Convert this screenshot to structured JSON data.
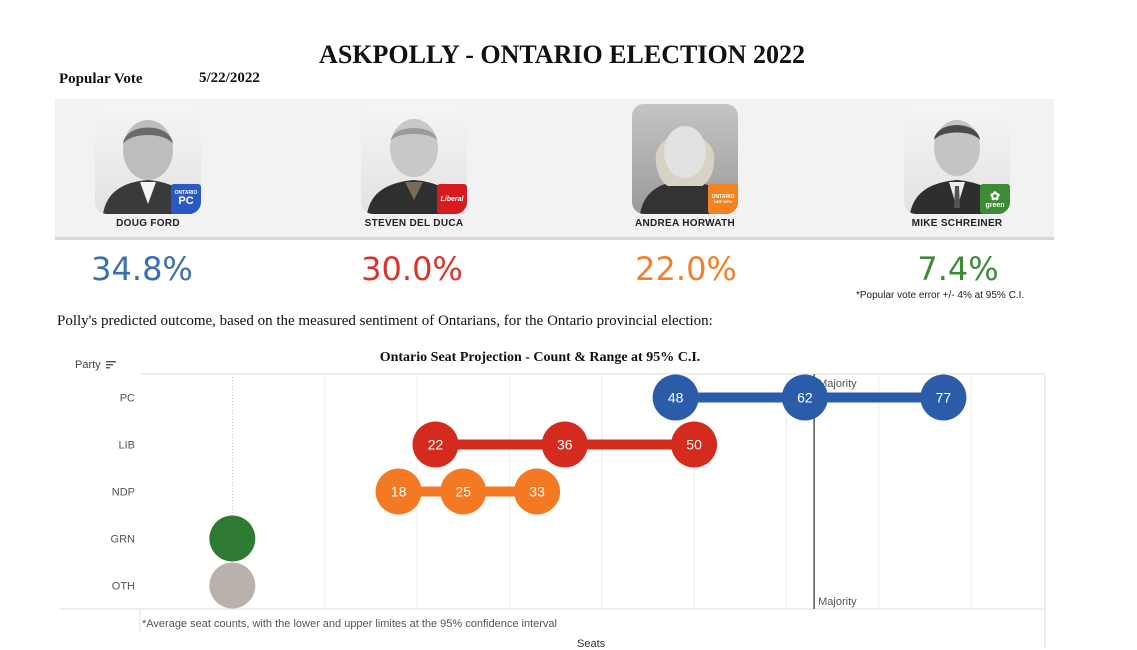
{
  "header": {
    "title": "ASKPOLLY - ONTARIO ELECTION 2022",
    "popular_vote_label": "Popular Vote",
    "date": "5/22/2022"
  },
  "candidates": [
    {
      "name": "DOUG FORD",
      "pct": "34.8%",
      "color": "#3a6fb0",
      "logo_color": "#2b59c3",
      "logo_text": "ONTARIO",
      "logo_sub": "PC",
      "icon": "pc-party-logo-icon"
    },
    {
      "name": "STEVEN DEL DUCA",
      "pct": "30.0%",
      "color": "#d9342b",
      "logo_color": "#d71920",
      "logo_text": "Liberal",
      "logo_sub": "",
      "icon": "liberal-party-logo-icon"
    },
    {
      "name": "ANDREA HORWATH",
      "pct": "22.0%",
      "color": "#f0802c",
      "logo_color": "#f58220",
      "logo_text": "ONTARIO",
      "logo_sub": "NDP·NPD",
      "icon": "ndp-party-logo-icon"
    },
    {
      "name": "MIKE SCHREINER",
      "pct": "7.4%",
      "color": "#3f8a3a",
      "logo_color": "#3d8b37",
      "logo_text": "",
      "logo_sub": "green",
      "icon": "green-party-logo-icon"
    }
  ],
  "popular_vote_note": "*Popular vote error +/- 4% at 95% C.I.",
  "outcome_text": "Polly's predicted outcome, based on the measured sentiment of Ontarians, for the Ontario provincial election:",
  "chart_data": {
    "type": "scatter",
    "title": "Ontario Seat Projection - Count & Range at 95% C.I.",
    "y_header": "Party",
    "xlabel": "Seats",
    "xlim": [
      -10,
      88
    ],
    "categories": [
      "PC",
      "LIB",
      "NDP",
      "GRN",
      "OTH"
    ],
    "series": [
      {
        "party": "PC",
        "low": 48,
        "mid": 62,
        "high": 77,
        "color": "#2a5caa"
      },
      {
        "party": "LIB",
        "low": 22,
        "mid": 36,
        "high": 50,
        "color": "#d52b1e"
      },
      {
        "party": "NDP",
        "low": 18,
        "mid": 25,
        "high": 33,
        "color": "#f37a22"
      },
      {
        "party": "GRN",
        "low": 0,
        "mid": 0,
        "high": 0,
        "color": "#2f7a33"
      },
      {
        "party": "OTH",
        "low": 0,
        "mid": 0,
        "high": 0,
        "color": "#b9b1ac"
      }
    ],
    "majority": {
      "value": 63,
      "label": "Majority"
    },
    "footnote": "*Average seat counts, with the lower and upper limites at the 95% confidence interval",
    "grid": true
  }
}
